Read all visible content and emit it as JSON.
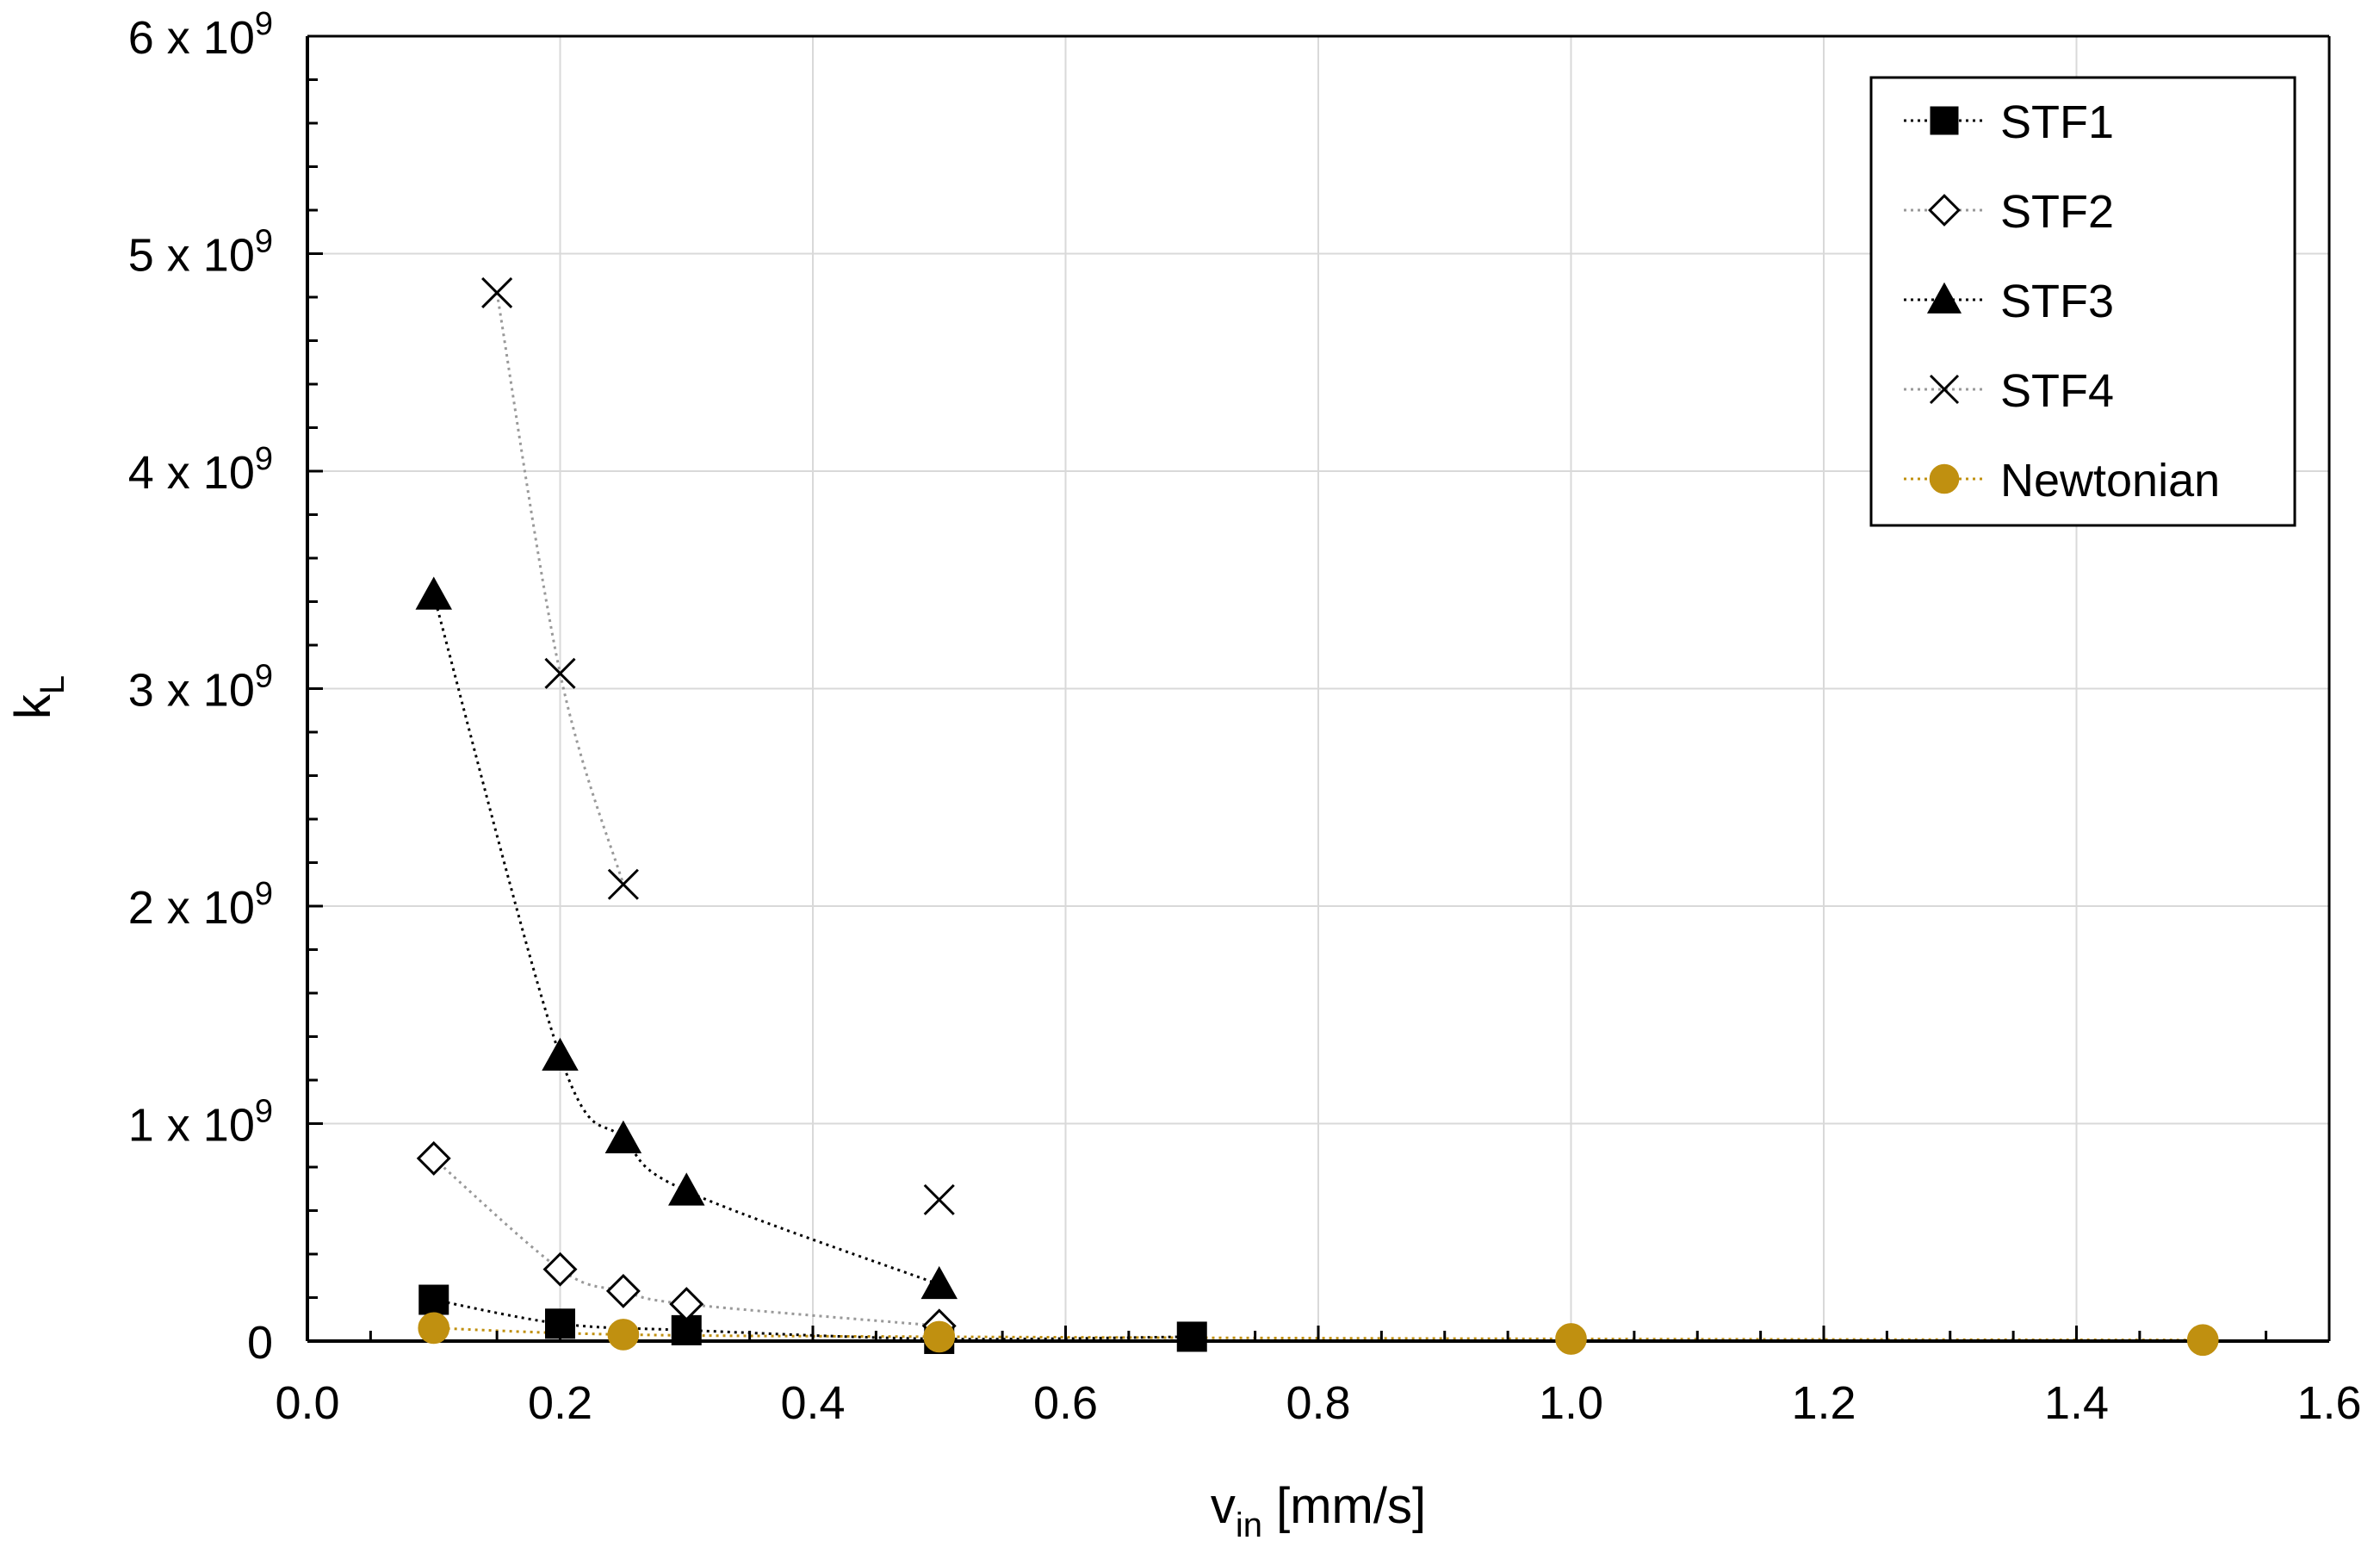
{
  "chart_data": {
    "type": "scatter",
    "title": "",
    "xlabel": {
      "base": "v",
      "subscript": "in",
      "suffix": " [mm/s]"
    },
    "ylabel": {
      "base": "k",
      "subscript": "L"
    },
    "xlim": [
      0,
      1.6
    ],
    "ylim": [
      0,
      6000000000
    ],
    "x_ticks": [
      0.0,
      0.2,
      0.4,
      0.6,
      0.8,
      1.0,
      1.2,
      1.4,
      1.6
    ],
    "x_tick_labels": [
      "0.0",
      "0.2",
      "0.4",
      "0.6",
      "0.8",
      "1.0",
      "1.2",
      "1.4",
      "1.6"
    ],
    "y_ticks": [
      0,
      1000000000,
      2000000000,
      3000000000,
      4000000000,
      5000000000,
      6000000000
    ],
    "y_tick_labels": [
      {
        "base": "0",
        "exp": ""
      },
      {
        "base": "1 x 10",
        "exp": "9"
      },
      {
        "base": "2 x 10",
        "exp": "9"
      },
      {
        "base": "3 x 10",
        "exp": "9"
      },
      {
        "base": "4 x 10",
        "exp": "9"
      },
      {
        "base": "5 x 10",
        "exp": "9"
      },
      {
        "base": "6 x 10",
        "exp": "9"
      }
    ],
    "grid": true,
    "legend_position": "top-right",
    "series": [
      {
        "name": "STF1",
        "marker": "square",
        "color": "#000000",
        "line_color": "#000000",
        "x": [
          0.1,
          0.2,
          0.3,
          0.5,
          0.7
        ],
        "y": [
          190000000,
          80000000,
          50000000,
          10000000,
          20000000
        ]
      },
      {
        "name": "STF2",
        "marker": "diamond-open",
        "color": "#000000",
        "line_color": "#999999",
        "x": [
          0.1,
          0.2,
          0.25,
          0.3,
          0.5
        ],
        "y": [
          840000000,
          330000000,
          230000000,
          170000000,
          70000000
        ]
      },
      {
        "name": "STF3",
        "marker": "triangle",
        "color": "#000000",
        "line_color": "#000000",
        "x": [
          0.1,
          0.2,
          0.25,
          0.3,
          0.5
        ],
        "y": [
          3430000000,
          1310000000,
          930000000,
          690000000,
          260000000
        ]
      },
      {
        "name": "STF4",
        "marker": "x",
        "color": "#000000",
        "line_color": "#999999",
        "x": [
          0.15,
          0.2,
          0.25
        ],
        "y": [
          4820000000,
          3070000000,
          2100000000
        ]
      },
      {
        "name": "STF4",
        "marker": "x",
        "color": "#000000",
        "line_color": "none",
        "x": [
          0.5
        ],
        "y": [
          650000000
        ],
        "in_legend": false
      },
      {
        "name": "Newtonian",
        "marker": "circle",
        "color": "#C09010",
        "line_color": "#C09010",
        "x": [
          0.1,
          0.25,
          0.5,
          1.0,
          1.5
        ],
        "y": [
          60000000,
          30000000,
          20000000,
          10000000,
          5000000
        ]
      }
    ]
  }
}
